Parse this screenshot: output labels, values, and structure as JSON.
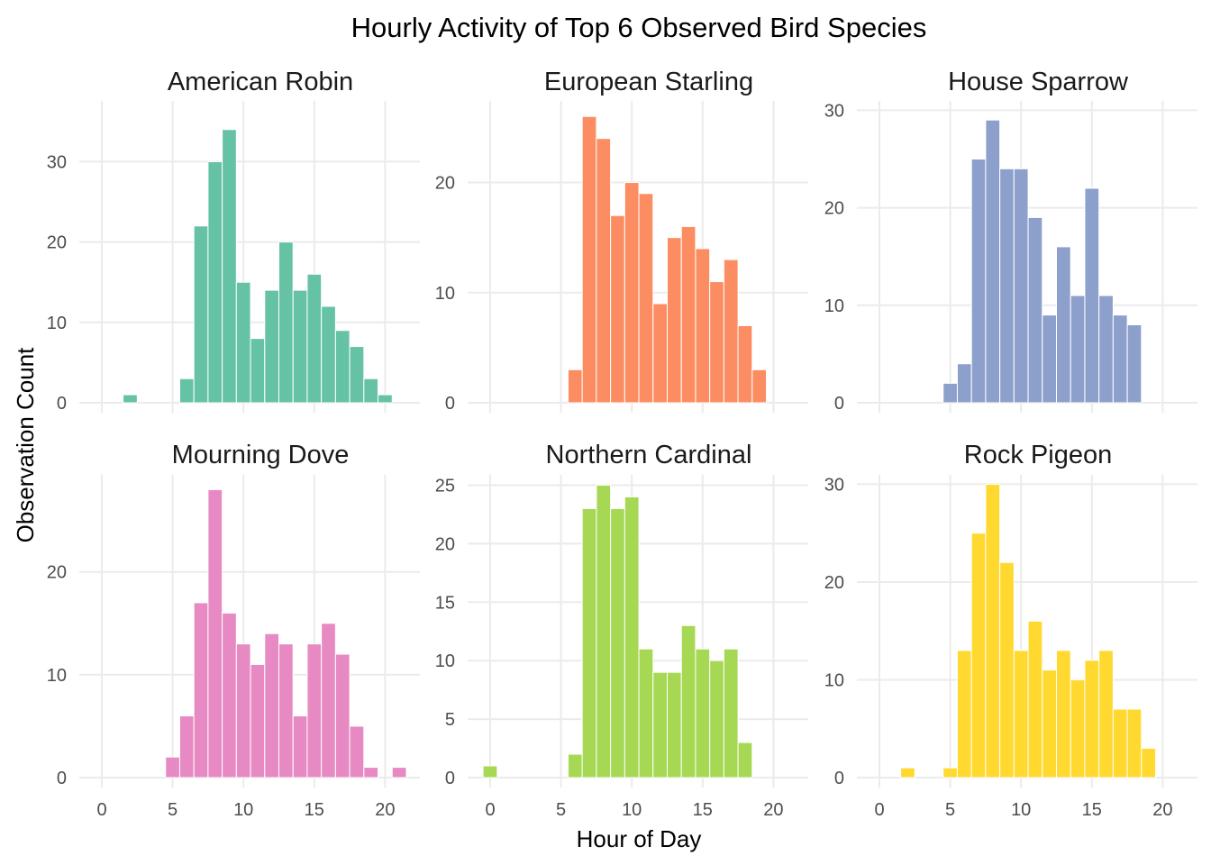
{
  "chart_data": {
    "type": "bar",
    "title": "Hourly Activity of Top 6 Observed Bird Species",
    "xlabel": "Hour of Day",
    "ylabel": "Observation Count",
    "x_ticks": [
      0,
      5,
      10,
      15,
      20
    ],
    "xlim": [
      -1,
      22
    ],
    "grid": true,
    "legend": "none",
    "panels": [
      {
        "name": "American Robin",
        "color": "#66C2A5",
        "y_ticks": [
          0,
          10,
          20,
          30
        ],
        "ylim": [
          0,
          37
        ],
        "hours": [
          2,
          6,
          7,
          8,
          9,
          10,
          11,
          12,
          13,
          14,
          15,
          16,
          17,
          18,
          19,
          20
        ],
        "values": [
          1,
          3,
          22,
          30,
          34,
          15,
          8,
          14,
          20,
          14,
          16,
          12,
          9,
          7,
          3,
          1
        ]
      },
      {
        "name": "European Starling",
        "color": "#FC8D62",
        "y_ticks": [
          0,
          10,
          20
        ],
        "ylim": [
          0,
          27
        ],
        "hours": [
          6,
          7,
          8,
          9,
          10,
          11,
          12,
          13,
          14,
          15,
          16,
          17,
          18,
          19
        ],
        "values": [
          3,
          26,
          24,
          17,
          20,
          19,
          9,
          15,
          16,
          14,
          11,
          13,
          7,
          3
        ]
      },
      {
        "name": "House Sparrow",
        "color": "#8DA0CB",
        "y_ticks": [
          0,
          10,
          20,
          30
        ],
        "ylim": [
          0,
          30.5
        ],
        "hours": [
          5,
          6,
          7,
          8,
          9,
          10,
          11,
          12,
          13,
          14,
          15,
          16,
          17,
          18
        ],
        "values": [
          2,
          4,
          25,
          29,
          24,
          24,
          19,
          9,
          16,
          11,
          22,
          11,
          9,
          8
        ]
      },
      {
        "name": "Mourning Dove",
        "color": "#E78AC3",
        "y_ticks": [
          0,
          10,
          20
        ],
        "ylim": [
          0,
          29
        ],
        "hours": [
          5,
          6,
          7,
          8,
          9,
          10,
          11,
          12,
          13,
          14,
          15,
          16,
          17,
          18,
          19,
          21
        ],
        "values": [
          2,
          6,
          17,
          28,
          16,
          13,
          11,
          14,
          13,
          6,
          13,
          15,
          12,
          5,
          1,
          1
        ]
      },
      {
        "name": "Northern Cardinal",
        "color": "#A6D854",
        "y_ticks": [
          0,
          5,
          10,
          15,
          20,
          25
        ],
        "ylim": [
          0,
          25.5
        ],
        "hours": [
          0,
          6,
          7,
          8,
          9,
          10,
          11,
          12,
          13,
          14,
          15,
          16,
          17,
          18
        ],
        "values": [
          1,
          2,
          23,
          25,
          23,
          24,
          11,
          9,
          9,
          13,
          11,
          10,
          11,
          3
        ]
      },
      {
        "name": "Rock Pigeon",
        "color": "#FFD92F",
        "y_ticks": [
          0,
          10,
          20,
          30
        ],
        "ylim": [
          0,
          30.5
        ],
        "hours": [
          2,
          5,
          6,
          7,
          8,
          9,
          10,
          11,
          12,
          13,
          14,
          15,
          16,
          17,
          18,
          19
        ],
        "values": [
          1,
          1,
          13,
          25,
          30,
          22,
          13,
          16,
          11,
          13,
          10,
          12,
          13,
          7,
          7,
          3
        ]
      }
    ]
  }
}
